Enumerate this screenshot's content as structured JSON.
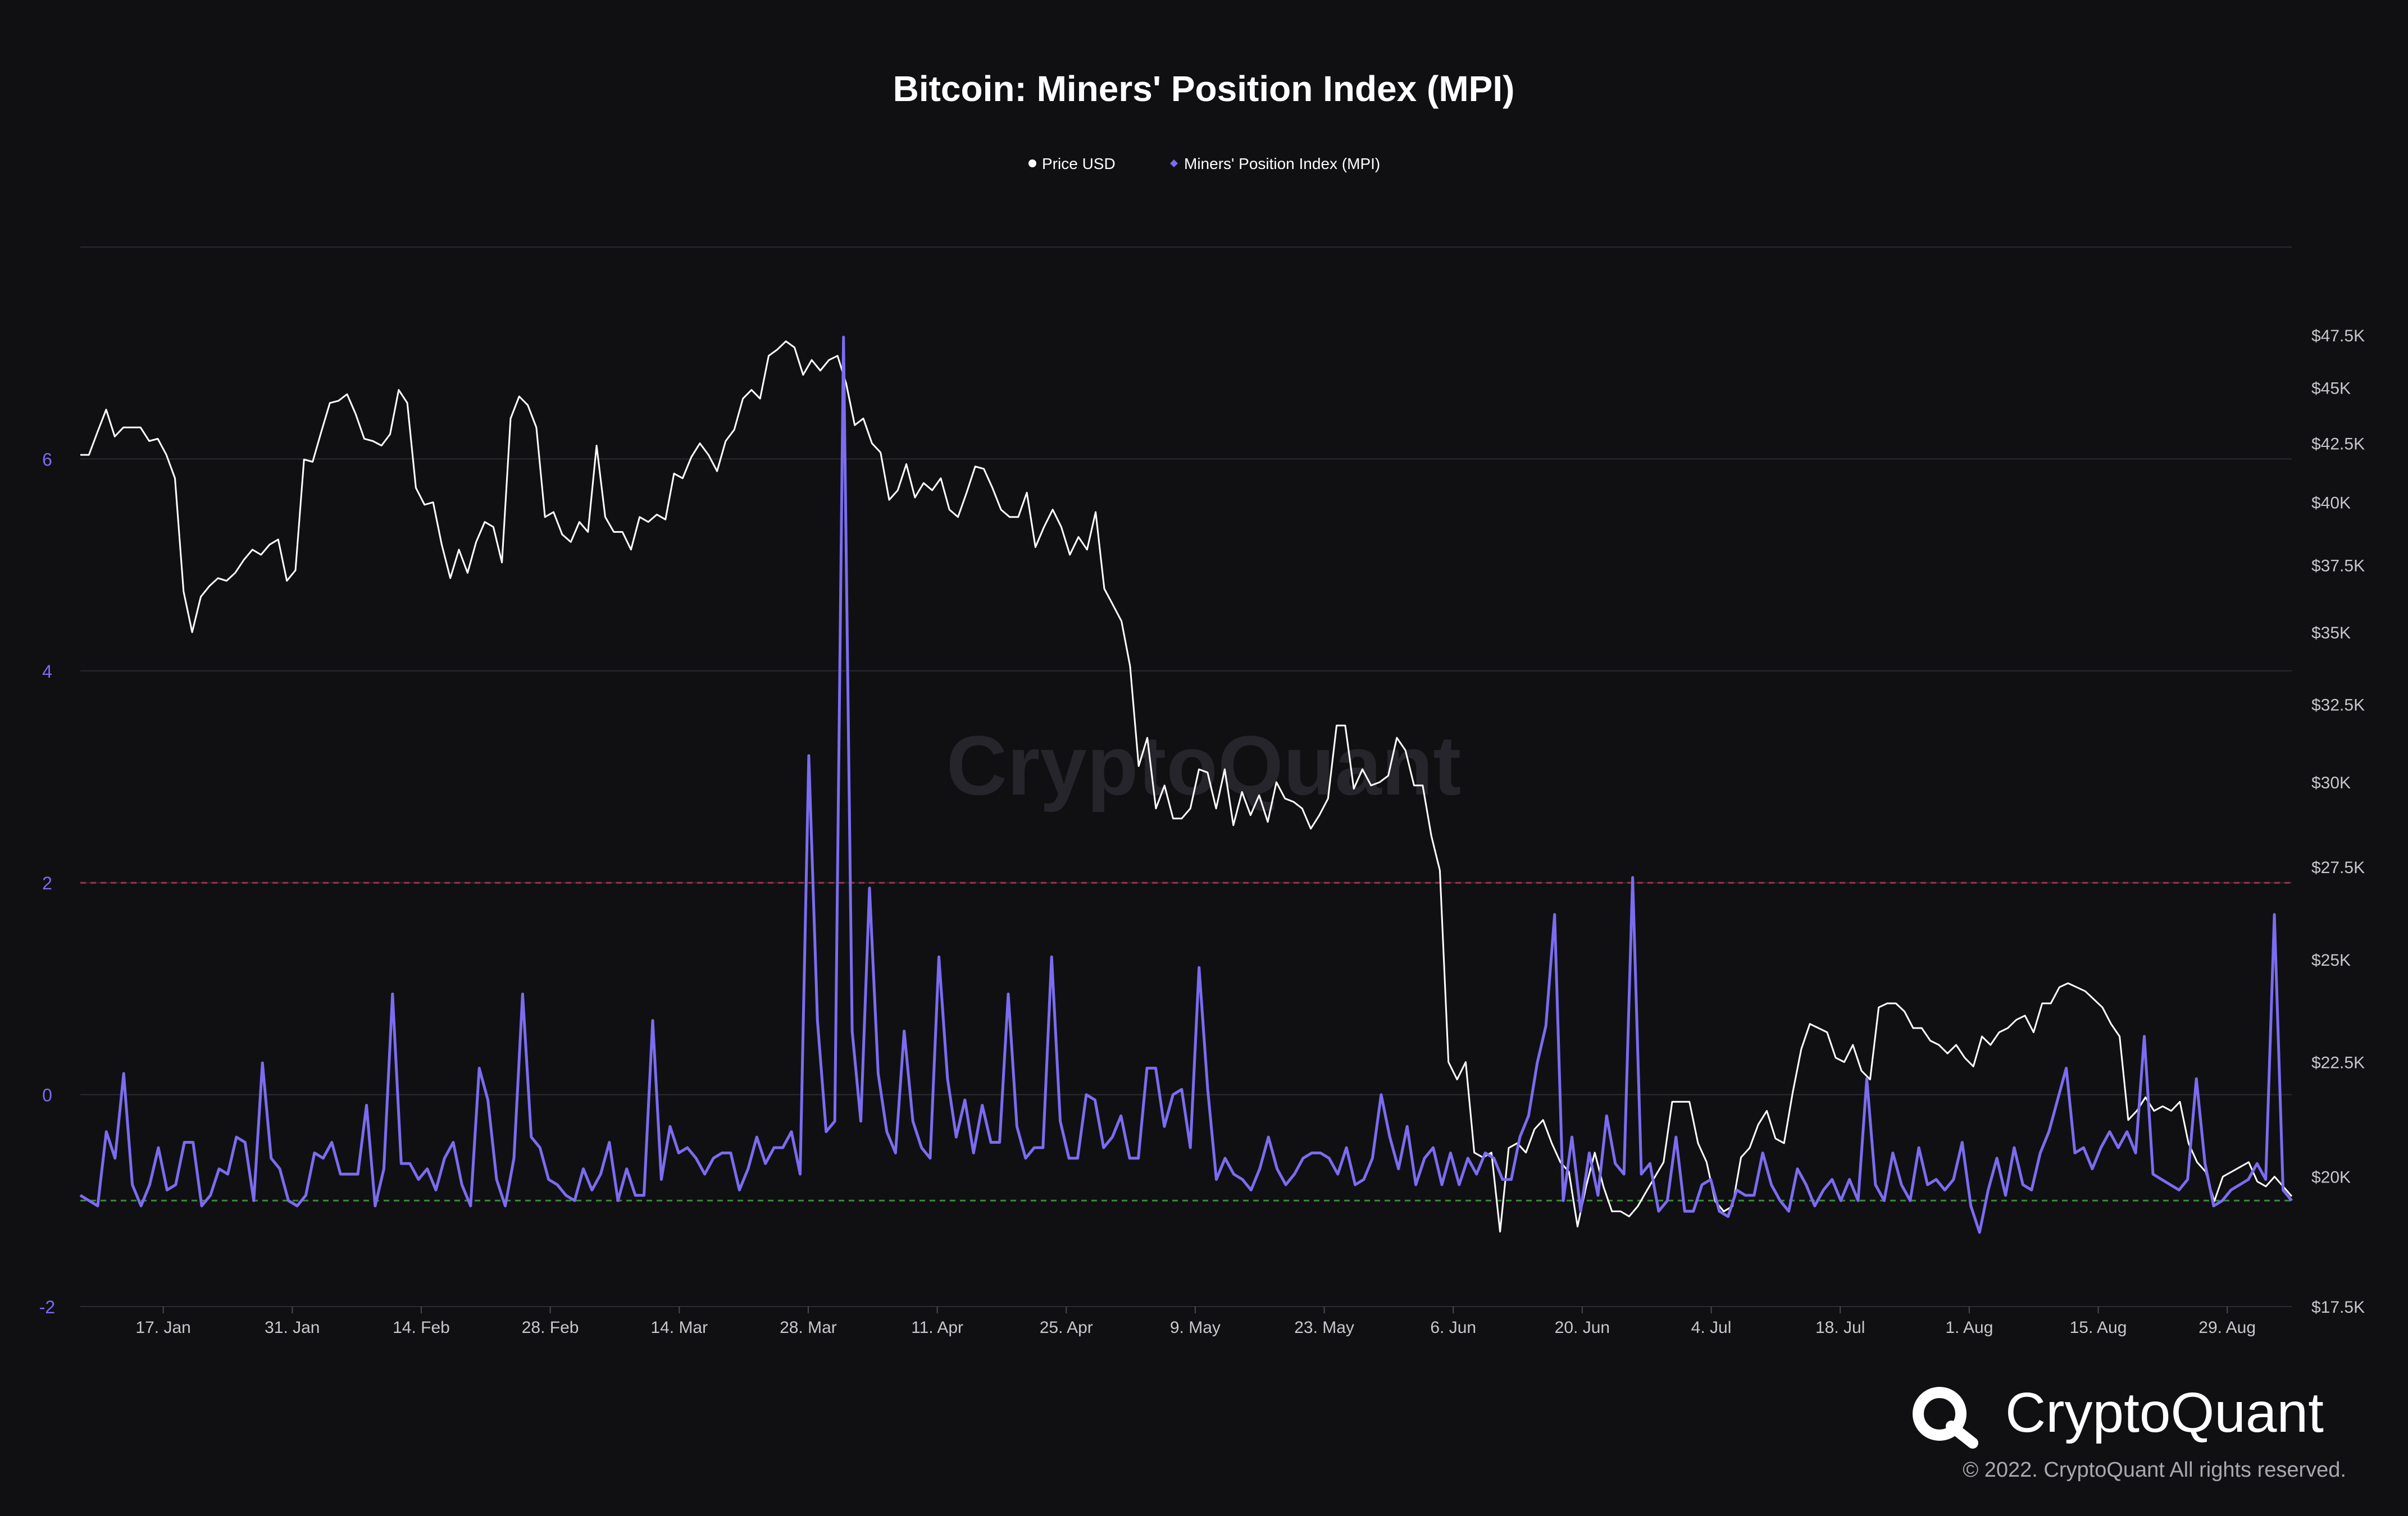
{
  "title": "Bitcoin: Miners' Position Index (MPI)",
  "legend": [
    {
      "label": "Price USD",
      "color": "#ffffff"
    },
    {
      "label": "Miners' Position Index (MPI)",
      "color": "#7b6cf0"
    }
  ],
  "watermark": "CryptoQuant",
  "brand": {
    "name": "CryptoQuant",
    "copyright": "© 2022. CryptoQuant All rights reserved."
  },
  "colors": {
    "background": "#101013",
    "price": "#ffffff",
    "mpi": "#7b6cf0",
    "upper_threshold": "#a0324a",
    "lower_threshold": "#3a8a3a",
    "grid": "#2a2a30",
    "left_axis": "#7b6cf0",
    "right_axis": "#c8c8cc",
    "x_axis": "#c8c8cc"
  },
  "chart_data": {
    "type": "line",
    "x_start": "2022-01-08",
    "x_end": "2022-09-05",
    "x_ticks": [
      {
        "date": "2022-01-17",
        "label": "17. Jan"
      },
      {
        "date": "2022-01-31",
        "label": "31. Jan"
      },
      {
        "date": "2022-02-14",
        "label": "14. Feb"
      },
      {
        "date": "2022-02-28",
        "label": "28. Feb"
      },
      {
        "date": "2022-03-14",
        "label": "14. Mar"
      },
      {
        "date": "2022-03-28",
        "label": "28. Mar"
      },
      {
        "date": "2022-04-11",
        "label": "11. Apr"
      },
      {
        "date": "2022-04-25",
        "label": "25. Apr"
      },
      {
        "date": "2022-05-09",
        "label": "9. May"
      },
      {
        "date": "2022-05-23",
        "label": "23. May"
      },
      {
        "date": "2022-06-06",
        "label": "6. Jun"
      },
      {
        "date": "2022-06-20",
        "label": "20. Jun"
      },
      {
        "date": "2022-07-04",
        "label": "4. Jul"
      },
      {
        "date": "2022-07-18",
        "label": "18. Jul"
      },
      {
        "date": "2022-08-01",
        "label": "1. Aug"
      },
      {
        "date": "2022-08-15",
        "label": "15. Aug"
      },
      {
        "date": "2022-08-29",
        "label": "29. Aug"
      }
    ],
    "left_axis": {
      "min": -2,
      "max": 8,
      "ticks": [
        -2,
        0,
        2,
        4,
        6
      ],
      "tick_labels": [
        "-2",
        "0",
        "2",
        "4",
        "6"
      ]
    },
    "right_axis": {
      "scale": "log",
      "min": 17500,
      "max": 52000,
      "ticks": [
        17500,
        20000,
        22500,
        25000,
        27500,
        30000,
        32500,
        35000,
        37500,
        40000,
        42500,
        45000,
        47500
      ],
      "tick_labels": [
        "$17.5K",
        "$20K",
        "$22.5K",
        "$25K",
        "$27.5K",
        "$30K",
        "$32.5K",
        "$35K",
        "$37.5K",
        "$40K",
        "$42.5K",
        "$45K",
        "$47.5K"
      ]
    },
    "thresholds": [
      {
        "axis": "left",
        "value": 2,
        "style": "dashed",
        "color": "#a0324a"
      },
      {
        "axis": "left",
        "value": -1,
        "style": "dashed",
        "color": "#3a8a3a"
      }
    ],
    "series": [
      {
        "name": "Price USD",
        "axis": "right",
        "color": "#ffffff",
        "values": [
          42000,
          42000,
          43000,
          44000,
          42800,
          43200,
          43200,
          43200,
          42600,
          42700,
          42000,
          41000,
          36500,
          35000,
          36300,
          36700,
          37000,
          36900,
          37200,
          37700,
          38100,
          37900,
          38300,
          38500,
          36900,
          37300,
          41800,
          41700,
          43000,
          44300,
          44400,
          44700,
          43800,
          42700,
          42600,
          42400,
          42900,
          44900,
          44300,
          40600,
          39900,
          40000,
          38300,
          37000,
          38100,
          37200,
          38400,
          39200,
          39000,
          37600,
          43600,
          44600,
          44200,
          43200,
          39400,
          39600,
          38700,
          38400,
          39200,
          38800,
          42400,
          39400,
          38800,
          38800,
          38100,
          39400,
          39200,
          39500,
          39300,
          41200,
          41000,
          41900,
          42500,
          42000,
          41300,
          42600,
          43100,
          44500,
          44900,
          44500,
          46500,
          46800,
          47200,
          46900,
          45600,
          46300,
          45800,
          46300,
          46500,
          45200,
          43300,
          43600,
          42500,
          42100,
          40100,
          40500,
          41600,
          40200,
          40800,
          40500,
          41000,
          39700,
          39400,
          40400,
          41500,
          41400,
          40600,
          39700,
          39400,
          39400,
          40400,
          38200,
          39000,
          39700,
          39000,
          37900,
          38600,
          38100,
          39600,
          36600,
          36000,
          35400,
          33800,
          30500,
          31400,
          29200,
          29900,
          28900,
          28900,
          29200,
          30400,
          30300,
          29200,
          30400,
          28700,
          29700,
          29000,
          29600,
          28800,
          30000,
          29500,
          29400,
          29200,
          28600,
          29000,
          29500,
          31800,
          31800,
          29800,
          30400,
          29900,
          30000,
          30200,
          31400,
          31000,
          29900,
          29900,
          28400,
          27400,
          22500,
          22100,
          22500,
          20500,
          20400,
          20500,
          18900,
          20600,
          20700,
          20500,
          21000,
          21200,
          20700,
          20300,
          20100,
          19000,
          19800,
          20500,
          19800,
          19300,
          19300,
          19200,
          19400,
          19700,
          20000,
          20300,
          21600,
          21600,
          21600,
          20700,
          20300,
          19500,
          19300,
          19400,
          20400,
          20600,
          21100,
          21400,
          20800,
          20700,
          21800,
          22800,
          23400,
          23300,
          23200,
          22600,
          22500,
          22900,
          22300,
          22100,
          23800,
          23900,
          23900,
          23700,
          23300,
          23300,
          23000,
          22900,
          22700,
          22900,
          22600,
          22400,
          23100,
          22900,
          23200,
          23300,
          23500,
          23600,
          23200,
          23900,
          23900,
          24300,
          24400,
          24300,
          24200,
          24000,
          23800,
          23400,
          23100,
          21200,
          21400,
          21700,
          21400,
          21500,
          21400,
          21600,
          20700,
          20300,
          20100,
          19500,
          20000,
          20100,
          20200,
          20300,
          19900,
          19800,
          20000,
          19800,
          19600
        ]
      },
      {
        "name": "Miners' Position Index (MPI)",
        "axis": "left",
        "color": "#7b6cf0",
        "values": [
          -0.95,
          -1.0,
          -1.05,
          -0.35,
          -0.6,
          0.2,
          -0.85,
          -1.05,
          -0.85,
          -0.5,
          -0.9,
          -0.85,
          -0.45,
          -0.45,
          -1.05,
          -0.95,
          -0.7,
          -0.75,
          -0.4,
          -0.45,
          -1.0,
          0.3,
          -0.6,
          -0.7,
          -1.0,
          -1.05,
          -0.95,
          -0.55,
          -0.6,
          -0.45,
          -0.75,
          -0.75,
          -0.75,
          -0.1,
          -1.05,
          -0.7,
          0.95,
          -0.65,
          -0.65,
          -0.8,
          -0.7,
          -0.9,
          -0.6,
          -0.45,
          -0.85,
          -1.05,
          0.25,
          -0.05,
          -0.8,
          -1.05,
          -0.6,
          0.95,
          -0.4,
          -0.5,
          -0.8,
          -0.85,
          -0.95,
          -1.0,
          -0.7,
          -0.9,
          -0.75,
          -0.45,
          -1.0,
          -0.7,
          -0.95,
          -0.95,
          0.7,
          -0.8,
          -0.3,
          -0.55,
          -0.5,
          -0.6,
          -0.75,
          -0.6,
          -0.55,
          -0.55,
          -0.9,
          -0.7,
          -0.4,
          -0.65,
          -0.5,
          -0.5,
          -0.35,
          -0.75,
          3.2,
          0.7,
          -0.35,
          -0.25,
          7.15,
          0.6,
          -0.25,
          1.95,
          0.2,
          -0.35,
          -0.55,
          0.6,
          -0.25,
          -0.5,
          -0.6,
          1.3,
          0.15,
          -0.4,
          -0.05,
          -0.55,
          -0.1,
          -0.45,
          -0.45,
          0.95,
          -0.3,
          -0.6,
          -0.5,
          -0.5,
          1.3,
          -0.25,
          -0.6,
          -0.6,
          0.0,
          -0.05,
          -0.5,
          -0.4,
          -0.2,
          -0.6,
          -0.6,
          0.25,
          0.25,
          -0.3,
          0.0,
          0.05,
          -0.5,
          1.2,
          0.05,
          -0.8,
          -0.6,
          -0.75,
          -0.8,
          -0.9,
          -0.7,
          -0.4,
          -0.7,
          -0.85,
          -0.75,
          -0.6,
          -0.55,
          -0.55,
          -0.6,
          -0.75,
          -0.5,
          -0.85,
          -0.8,
          -0.6,
          0.0,
          -0.4,
          -0.7,
          -0.3,
          -0.85,
          -0.6,
          -0.5,
          -0.85,
          -0.55,
          -0.85,
          -0.6,
          -0.75,
          -0.55,
          -0.6,
          -0.8,
          -0.8,
          -0.4,
          -0.2,
          0.3,
          0.65,
          1.7,
          -1.0,
          -0.4,
          -1.1,
          -0.55,
          -0.95,
          -0.2,
          -0.65,
          -0.75,
          2.05,
          -0.75,
          -0.65,
          -1.1,
          -1.0,
          -0.4,
          -1.1,
          -1.1,
          -0.85,
          -0.8,
          -1.1,
          -1.15,
          -0.9,
          -0.95,
          -0.95,
          -0.55,
          -0.85,
          -1.0,
          -1.1,
          -0.7,
          -0.85,
          -1.05,
          -0.9,
          -0.8,
          -1.0,
          -0.8,
          -1.0,
          0.15,
          -0.85,
          -1.0,
          -0.55,
          -0.85,
          -1.0,
          -0.5,
          -0.85,
          -0.8,
          -0.9,
          -0.8,
          -0.45,
          -1.05,
          -1.3,
          -0.9,
          -0.6,
          -0.95,
          -0.5,
          -0.85,
          -0.9,
          -0.55,
          -0.35,
          -0.05,
          0.25,
          -0.55,
          -0.5,
          -0.7,
          -0.5,
          -0.35,
          -0.5,
          -0.35,
          -0.55,
          0.55,
          -0.75,
          -0.8,
          -0.85,
          -0.9,
          -0.8,
          0.15,
          -0.65,
          -1.05,
          -1.0,
          -0.9,
          -0.85,
          -0.8,
          -0.65,
          -0.8,
          1.7,
          -0.9,
          -1.0
        ]
      }
    ]
  }
}
